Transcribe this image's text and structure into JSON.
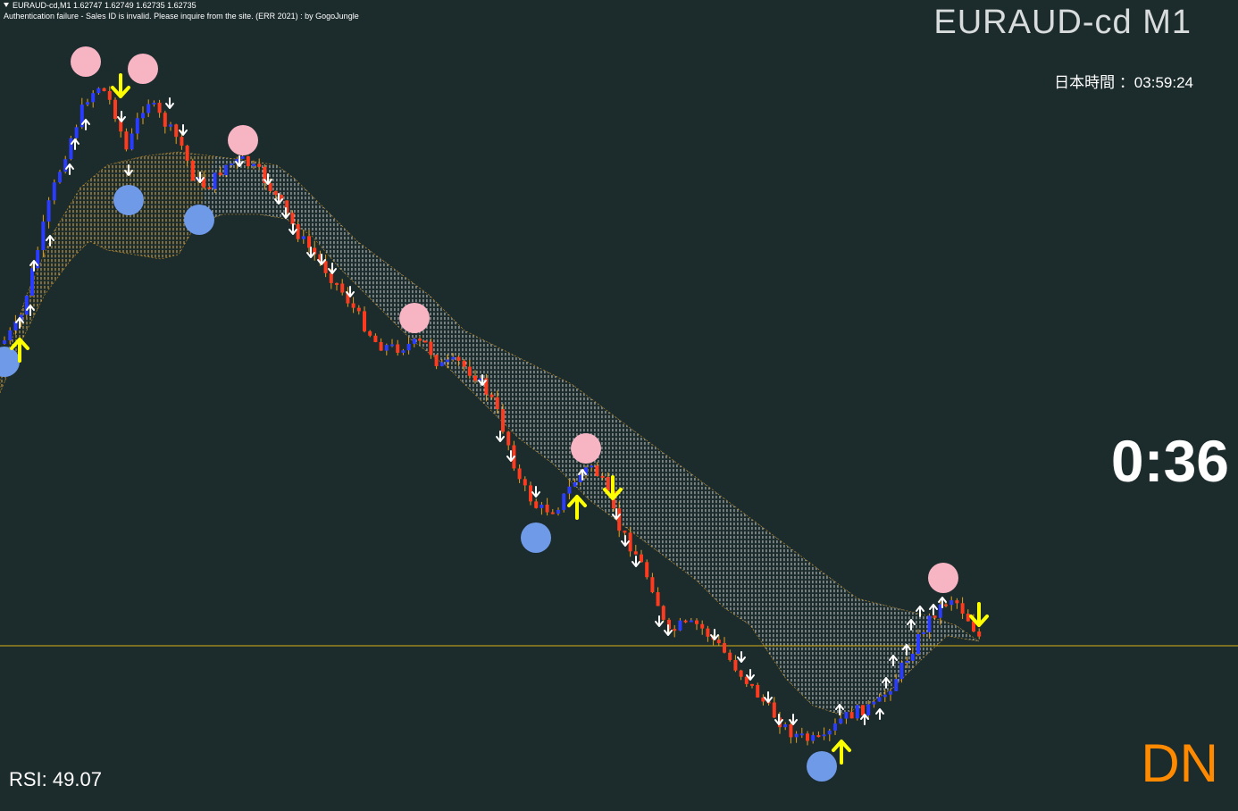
{
  "header": {
    "ohlc_line": "EURAUD-cd,M1  1.62747 1.62749 1.62735 1.62735",
    "status_line": "Authentication failure - Sales ID is invalid. Please inquire from the site. (ERR 2021) : by GogoJungle"
  },
  "overlay": {
    "symbol_title": "EURAUD-cd M1",
    "jst_label": "日本時間",
    "jst_time": "：03:59:24",
    "countdown": "0:36",
    "rsi_text": "RSI: 49.07",
    "signal": "DN"
  },
  "colors": {
    "background": "#1c2b2c",
    "bull_candle": "#2a3cff",
    "bear_candle": "#ff3b1f",
    "wick": "#e6a11e",
    "cloud": "#ffffff",
    "cloud_edge": "#e6a11e",
    "price_line": "#d7b21a",
    "high_marker": "#f7b4c3",
    "low_marker": "#6f9ae8",
    "signal_arrow": "#ffff00",
    "tick_arrow": "#ffffff",
    "signal_text": "#ff8a00"
  },
  "icons": {
    "header_menu": "triangle-down-icon",
    "up_signal": "yellow-up-arrow-icon",
    "down_signal": "yellow-down-arrow-icon"
  }
}
